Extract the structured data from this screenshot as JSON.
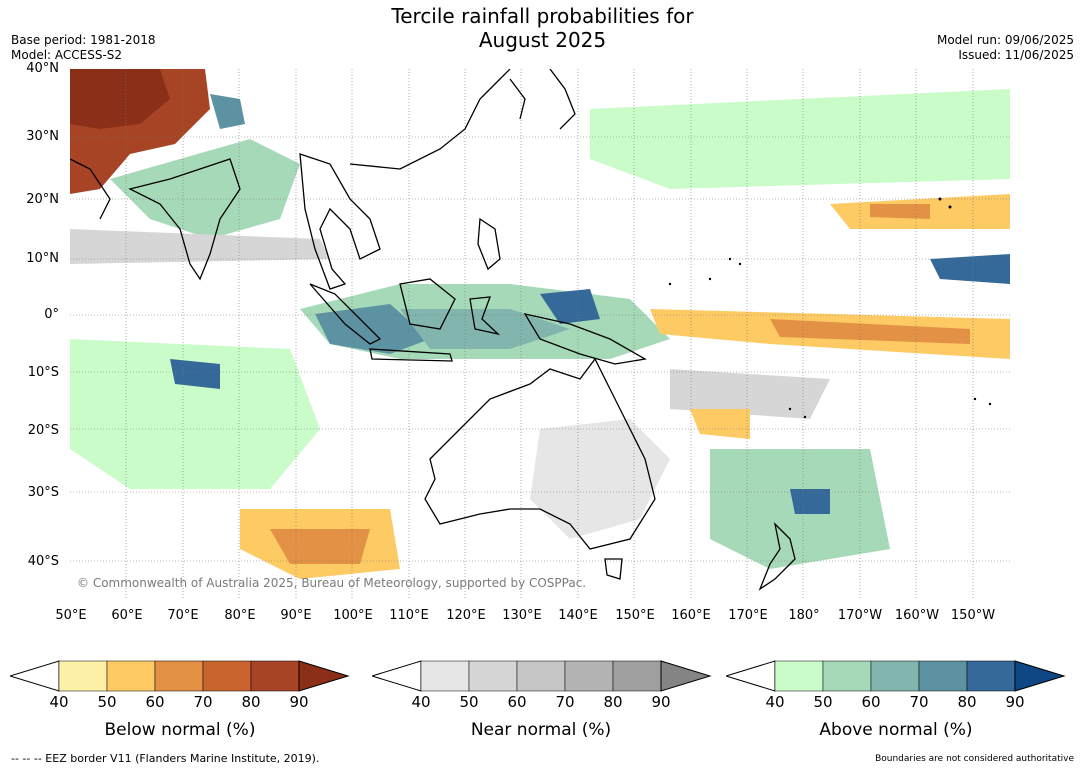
{
  "title_line1": "Tercile rainfall probabilities for",
  "title_line2": "August 2025",
  "meta_left": {
    "base_period": "Base period: 1981-2018",
    "model": "Model: ACCESS-S2"
  },
  "meta_right": {
    "model_run": "Model run: 09/06/2025",
    "issued": "Issued: 11/06/2025"
  },
  "lat_labels": [
    "40°N",
    "30°N",
    "20°N",
    "10°N",
    "0°",
    "10°S",
    "20°S",
    "30°S",
    "40°S"
  ],
  "lon_labels": [
    "50°E",
    "60°E",
    "70°E",
    "80°E",
    "90°E",
    "100°E",
    "110°E",
    "120°E",
    "130°E",
    "140°E",
    "150°E",
    "160°E",
    "170°E",
    "180°",
    "170°W",
    "160°W",
    "150°W"
  ],
  "copyright": "© Commonwealth of Australia 2025, Bureau of Meteorology, supported by COSPPac.",
  "colorbars": [
    {
      "label": "Below normal (%)",
      "ticks": [
        "40",
        "50",
        "60",
        "70",
        "80",
        "90"
      ],
      "colors": [
        "#fff0a8",
        "#fdca63",
        "#e29145",
        "#c9642f",
        "#a84426",
        "#8b2f18"
      ]
    },
    {
      "label": "Near normal (%)",
      "ticks": [
        "40",
        "50",
        "60",
        "70",
        "80",
        "90"
      ],
      "colors": [
        "#e6e6e6",
        "#d6d6d6",
        "#c6c6c6",
        "#b3b3b3",
        "#9f9f9f",
        "#848484"
      ]
    },
    {
      "label": "Above normal (%)",
      "ticks": [
        "40",
        "50",
        "60",
        "70",
        "80",
        "90"
      ],
      "colors": [
        "#cafcca",
        "#a5d9b8",
        "#82b5ad",
        "#5d92a2",
        "#346999",
        "#0f4784"
      ]
    }
  ],
  "footer_left": "--  --  -- EEZ border V11 (Flanders Marine Institute, 2019).",
  "footer_right": "Boundaries are not considered authoritative"
}
